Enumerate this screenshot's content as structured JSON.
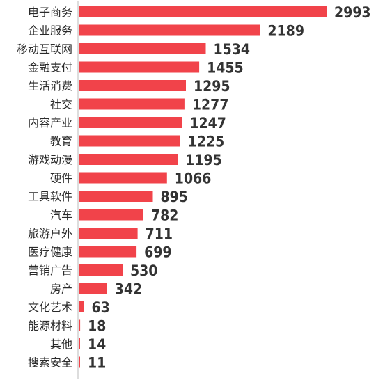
{
  "chart_data": {
    "type": "bar",
    "orientation": "horizontal",
    "categories": [
      "电子商务",
      "企业服务",
      "移动互联网",
      "金融支付",
      "生活消费",
      "社交",
      "内容产业",
      "教育",
      "游戏动漫",
      "硬件",
      "工具软件",
      "汽车",
      "旅游户外",
      "医疗健康",
      "营销广告",
      "房产",
      "文化艺术",
      "能源材料",
      "其他",
      "搜索安全"
    ],
    "values": [
      2993,
      2189,
      1534,
      1455,
      1295,
      1277,
      1247,
      1225,
      1195,
      1066,
      895,
      782,
      711,
      699,
      530,
      342,
      63,
      18,
      14,
      11
    ],
    "bar_color": "#f1434a",
    "axis_color": "#bbbbbb",
    "xlim": [
      0,
      2993
    ],
    "grid": false,
    "legend": "none"
  }
}
